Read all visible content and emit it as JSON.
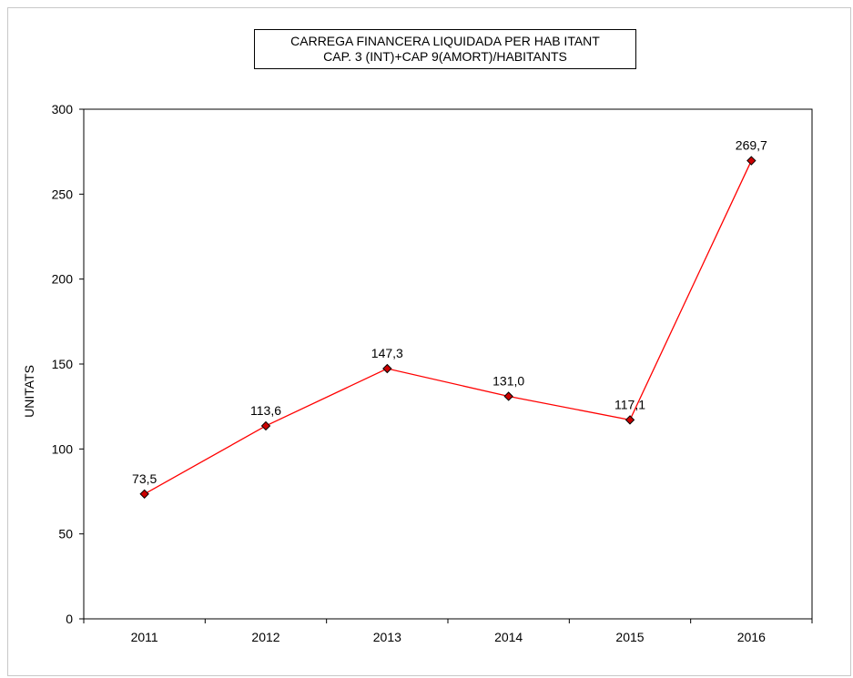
{
  "chart_data": {
    "type": "line",
    "title": "CARREGA FINANCERA LIQUIDADA PER HAB ITANT",
    "subtitle": "CAP. 3 (INT)+CAP 9(AMORT)/HABITANTS",
    "ylabel": "UNITATS",
    "xlabel": "",
    "categories": [
      "2011",
      "2012",
      "2013",
      "2014",
      "2015",
      "2016"
    ],
    "series": [
      {
        "values": [
          73.5,
          113.6,
          147.3,
          131.0,
          117.1,
          269.7
        ],
        "data_labels": [
          "73,5",
          "113,6",
          "147,3",
          "131,0",
          "117,1",
          "269,7"
        ]
      }
    ],
    "ylim": [
      0,
      300
    ],
    "yticks": [
      0,
      50,
      100,
      150,
      200,
      250,
      300
    ],
    "grid": false,
    "legend": "none",
    "colors": {
      "line": "#ff0000",
      "marker_fill": "#cc0000",
      "marker_stroke": "#000000",
      "axis": "#000000",
      "frame": "#c8c8c8"
    }
  }
}
